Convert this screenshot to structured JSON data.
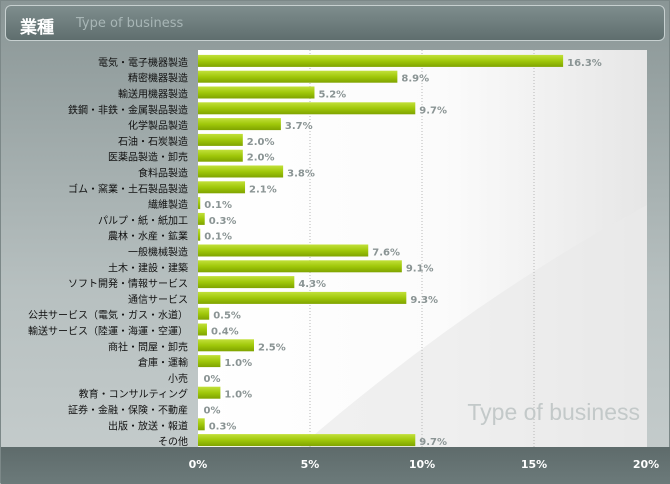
{
  "header": {
    "title": "業種",
    "subtitle": "Type of business"
  },
  "watermark": "Type of business",
  "colors": {
    "bar": "#a0c80a",
    "value_label": "#8a9494",
    "category_label": "#111111"
  },
  "chart_data": {
    "type": "bar",
    "orientation": "horizontal",
    "title": "",
    "xlabel": "",
    "ylabel": "",
    "xlim": [
      0,
      20
    ],
    "x_ticks": [
      "0%",
      "5%",
      "10%",
      "15%",
      "20%"
    ],
    "grid": true,
    "categories": [
      "電気・電子機器製造",
      "精密機器製造",
      "輸送用機器製造",
      "鉄鋼・非鉄・金属製品製造",
      "化学製品製造",
      "石油・石炭製造",
      "医薬品製造・卸売",
      "食料品製造",
      "ゴム・窯業・土石製品製造",
      "繊維製造",
      "パルプ・紙・紙加工",
      "農林・水産・鉱業",
      "一般機械製造",
      "土木・建設・建築",
      "ソフト開発・情報サービス",
      "通信サービス",
      "公共サービス（電気・ガス・水道）",
      "輸送サービス（陸運・海運・空運）",
      "商社・問屋・卸売",
      "倉庫・運輸",
      "小売",
      "教育・コンサルティング",
      "証券・金融・保険・不動産",
      "出版・放送・報道",
      "その他"
    ],
    "values": [
      16.3,
      8.9,
      5.2,
      9.7,
      3.7,
      2.0,
      2.0,
      3.8,
      2.1,
      0.1,
      0.3,
      0.1,
      7.6,
      9.1,
      4.3,
      9.3,
      0.5,
      0.4,
      2.5,
      1.0,
      0,
      1.0,
      0,
      0.3,
      9.7
    ],
    "value_labels": [
      "16.3%",
      "8.9%",
      "5.2%",
      "9.7%",
      "3.7%",
      "2.0%",
      "2.0%",
      "3.8%",
      "2.1%",
      "0.1%",
      "0.3%",
      "0.1%",
      "7.6%",
      "9.1%",
      "4.3%",
      "9.3%",
      "0.5%",
      "0.4%",
      "2.5%",
      "1.0%",
      "0%",
      "1.0%",
      "0%",
      "0.3%",
      "9.7%"
    ]
  }
}
